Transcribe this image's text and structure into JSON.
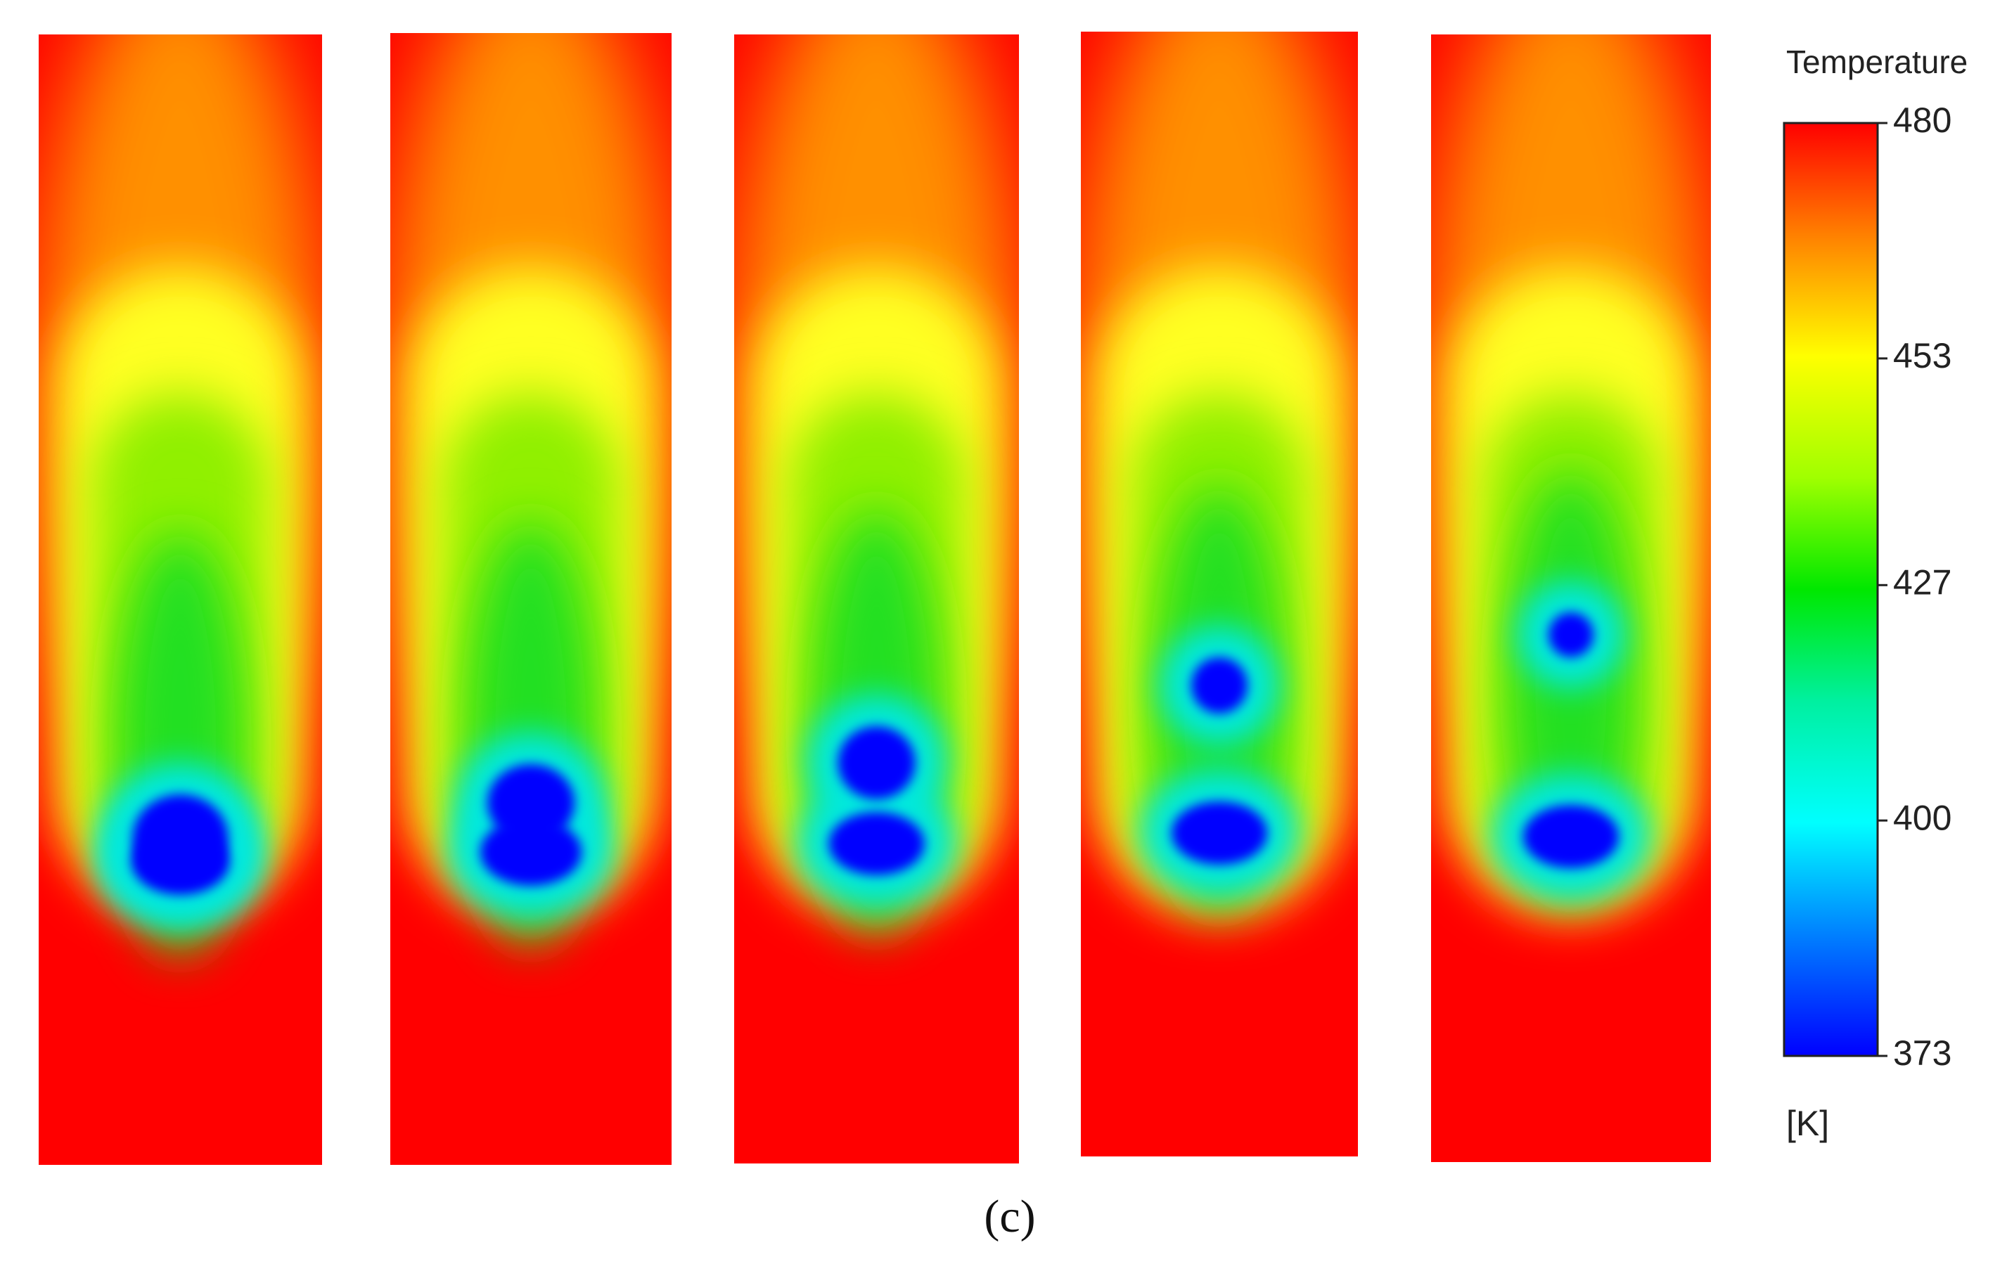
{
  "colorbar": {
    "title": "Temperature",
    "range": [
      373,
      480
    ],
    "ticks": [
      480,
      453,
      427,
      400,
      373
    ],
    "unit": "[K]"
  },
  "caption": "(c)"
}
